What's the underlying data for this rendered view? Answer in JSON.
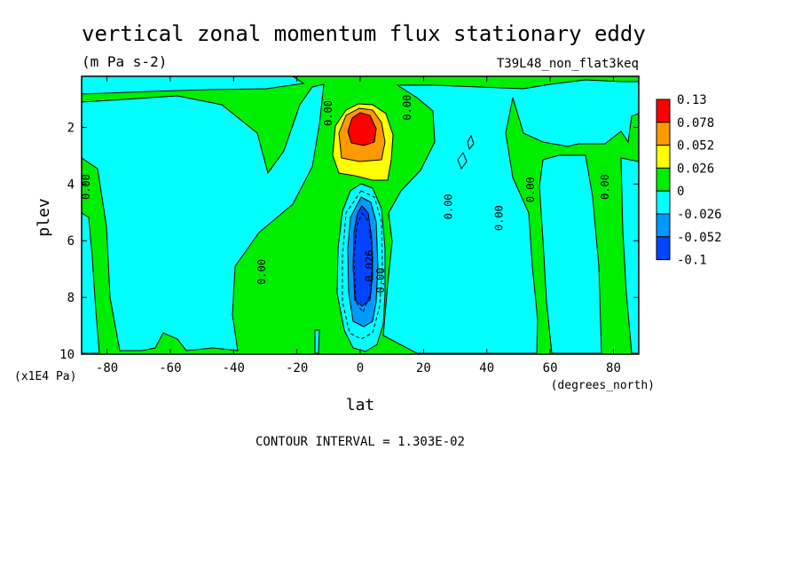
{
  "chart_data": {
    "type": "heatmap",
    "title": "vertical zonal momentum flux stationary eddy",
    "subtitle": "(m Pa s-2)",
    "experiment": "T39L48_non_flat3keq",
    "xlabel": "lat",
    "x_units": "(degrees_north)",
    "ylabel": "plev",
    "y_units": "(x1E4 Pa)",
    "xlim": [
      -88,
      88
    ],
    "ylim": [
      10,
      0.2
    ],
    "x_ticks": [
      -80,
      -60,
      -40,
      -20,
      0,
      20,
      40,
      60,
      80
    ],
    "y_ticks": [
      2,
      4,
      6,
      8,
      10
    ],
    "contour_interval_label": "CONTOUR INTERVAL = 1.303E-02",
    "colorbar": {
      "labels": [
        "0.13",
        "0.078",
        "0.052",
        "0.026",
        "0",
        "-0.026",
        "-0.052",
        "-0.1"
      ],
      "bins": [
        {
          "range": [
            0.078,
            0.13
          ],
          "color": "#ff0000"
        },
        {
          "range": [
            0.052,
            0.078
          ],
          "color": "#ff9900"
        },
        {
          "range": [
            0.026,
            0.052
          ],
          "color": "#ffff00"
        },
        {
          "range": [
            0.0,
            0.026
          ],
          "color": "#00ee00"
        },
        {
          "range": [
            -0.026,
            0.0
          ],
          "color": "#00ffff"
        },
        {
          "range": [
            -0.052,
            -0.026
          ],
          "color": "#0099ff"
        },
        {
          "range": [
            -0.1,
            -0.052
          ],
          "color": "#0044ff"
        }
      ]
    },
    "contour_labels": [
      {
        "text": "0.00",
        "lat": -85.5,
        "plev": 4.1
      },
      {
        "text": "0.00",
        "lat": -30,
        "plev": 7.1
      },
      {
        "text": "0.00",
        "lat": -9,
        "plev": 1.5
      },
      {
        "text": "0.00",
        "lat": 16,
        "plev": 1.3
      },
      {
        "text": "-0.026",
        "lat": 4,
        "plev": 7.0
      },
      {
        "text": "0.00",
        "lat": 7.5,
        "plev": 7.4
      },
      {
        "text": "0.00",
        "lat": 29,
        "plev": 4.8
      },
      {
        "text": "0.00",
        "lat": 45,
        "plev": 5.2
      },
      {
        "text": "0.00",
        "lat": 55,
        "plev": 4.2
      },
      {
        "text": "0.00",
        "lat": 78.5,
        "plev": 4.1
      }
    ]
  }
}
